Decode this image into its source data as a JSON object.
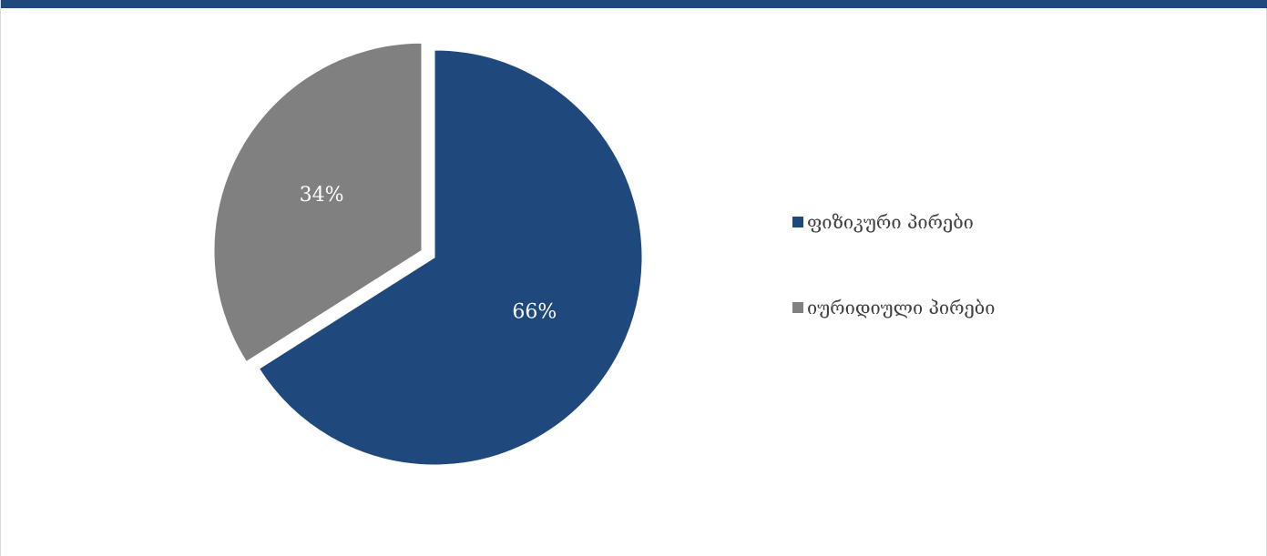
{
  "page": {
    "header_color": "#1f497d"
  },
  "chart_data": {
    "type": "pie",
    "slices": [
      {
        "name": "ფიზიკური პირები",
        "value": 66,
        "label": "66%",
        "color": "#1f497d"
      },
      {
        "name": "იურიდიული პირები",
        "value": 34,
        "label": "34%",
        "color": "#808080"
      }
    ],
    "start_angle_deg": 0,
    "direction": "clockwise",
    "exploded_slice": "იურიდიული პირები",
    "legend_position": "right",
    "data_label_color": "#ffffff"
  }
}
